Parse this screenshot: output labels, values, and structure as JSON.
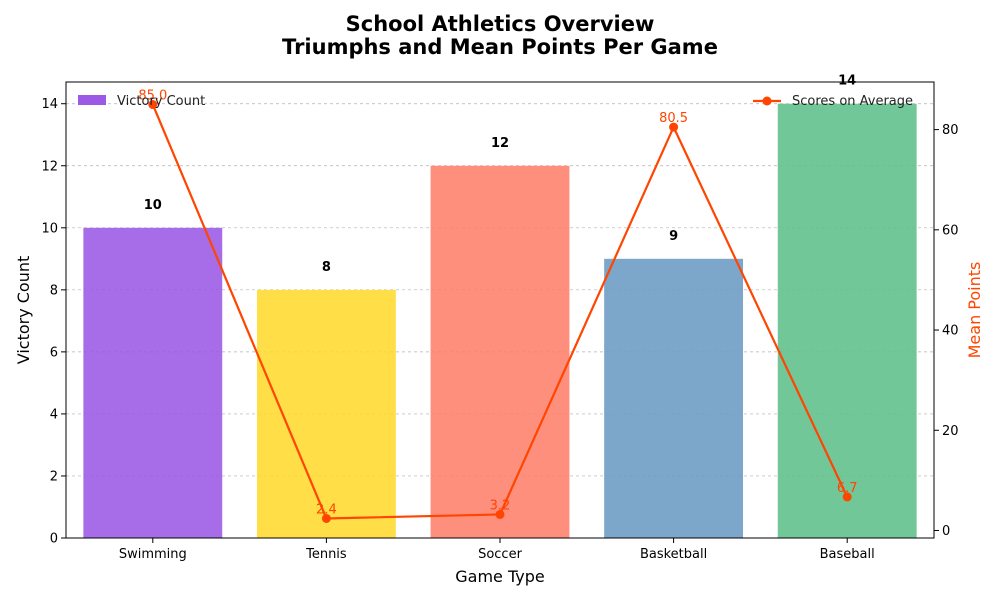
{
  "title_line1": "School Athletics Overview",
  "title_line2": "Triumphs and Mean Points Per Game",
  "colors": {
    "line": "#ff4500",
    "grid": "#b0b0b0",
    "bars": [
      "#9b59e6",
      "#ffd92f",
      "#ff7f6b",
      "#6a9bc3",
      "#5fbf8a"
    ]
  },
  "chart_data": {
    "type": "bar+line",
    "categories": [
      "Swimming",
      "Tennis",
      "Soccer",
      "Basketball",
      "Baseball"
    ],
    "bar_series": {
      "name": "Victory Count",
      "values": [
        10,
        8,
        12,
        9,
        14
      ],
      "value_labels": [
        "10",
        "8",
        "12",
        "9",
        "14"
      ]
    },
    "line_series": {
      "name": "Scores on Average",
      "values": [
        85.0,
        2.4,
        3.2,
        80.5,
        6.7
      ],
      "value_labels": [
        "85.0",
        "2.4",
        "3.2",
        "80.5",
        "6.7"
      ]
    },
    "xlabel": "Game Type",
    "ylabel": "Victory Count",
    "ylabel_right": "Mean Points",
    "ylim": [
      0,
      14.7
    ],
    "ylim_right": [
      -1.5,
      89.5
    ],
    "yticks": [
      0,
      2,
      4,
      6,
      8,
      10,
      12,
      14
    ],
    "yticks_right": [
      0,
      20,
      40,
      60,
      80
    ],
    "grid": "y-dashed",
    "legend_left": "top-left",
    "legend_right": "top-right"
  }
}
